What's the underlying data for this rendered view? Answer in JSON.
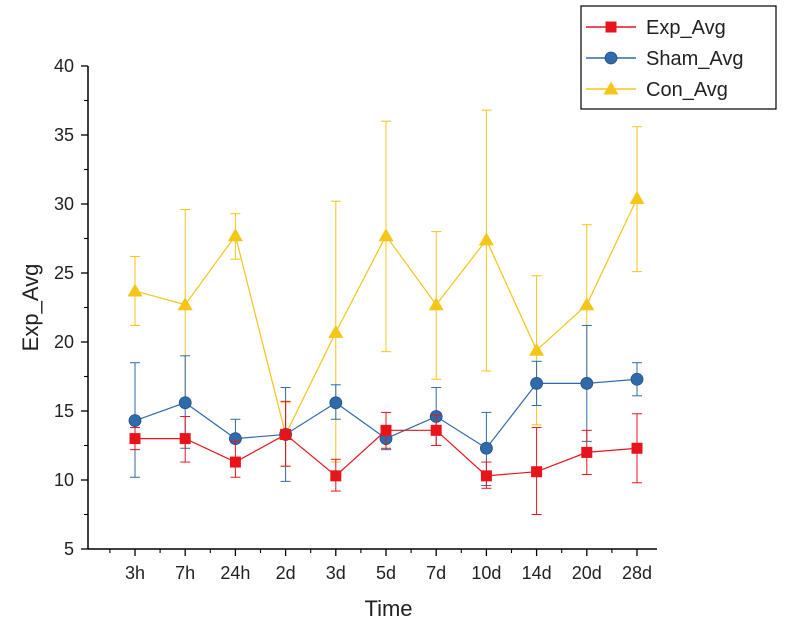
{
  "chart_data": {
    "type": "line",
    "title": "",
    "xlabel": "Time",
    "ylabel": "Exp_Avg",
    "categories": [
      "3h",
      "7h",
      "24h",
      "2d",
      "3d",
      "5d",
      "7d",
      "10d",
      "14d",
      "20d",
      "28d"
    ],
    "ylim": [
      5,
      40
    ],
    "yticks": [
      5,
      10,
      15,
      20,
      25,
      30,
      35,
      40
    ],
    "grid": false,
    "legend_position": "top-right",
    "series": [
      {
        "name": "Exp_Avg",
        "color": "#e8141b",
        "marker": "square",
        "values": [
          13.0,
          13.0,
          11.3,
          13.3,
          10.3,
          13.6,
          13.6,
          10.3,
          10.6,
          12.0,
          12.3
        ],
        "err_low": [
          12.2,
          11.3,
          10.2,
          11.0,
          9.2,
          12.3,
          12.5,
          9.4,
          7.5,
          10.4,
          9.8
        ],
        "err_high": [
          13.8,
          14.6,
          12.8,
          15.7,
          11.5,
          14.9,
          14.7,
          11.3,
          13.8,
          13.6,
          14.8
        ]
      },
      {
        "name": "Sham_Avg",
        "color": "#2f6aaa",
        "marker": "circle",
        "values": [
          14.3,
          15.6,
          13.0,
          13.3,
          15.6,
          13.0,
          14.6,
          12.3,
          17.0,
          17.0,
          17.3
        ],
        "err_low": [
          10.2,
          12.3,
          12.7,
          9.9,
          14.4,
          12.2,
          12.5,
          9.6,
          15.4,
          12.8,
          16.1
        ],
        "err_high": [
          18.5,
          19.0,
          14.4,
          16.7,
          16.9,
          13.7,
          16.7,
          14.9,
          18.6,
          21.2,
          18.5
        ]
      },
      {
        "name": "Con_Avg",
        "color": "#f5c518",
        "marker": "triangle",
        "values": [
          23.7,
          22.7,
          27.7,
          13.3,
          20.7,
          27.7,
          22.7,
          27.4,
          19.4,
          22.7,
          30.4
        ],
        "err_low": [
          21.2,
          15.8,
          26.0,
          11.0,
          11.3,
          19.3,
          17.3,
          17.9,
          14.0,
          17.0,
          25.1
        ],
        "err_high": [
          26.2,
          29.6,
          29.3,
          15.6,
          30.2,
          36.0,
          28.0,
          36.8,
          24.8,
          28.5,
          35.6
        ]
      }
    ]
  }
}
